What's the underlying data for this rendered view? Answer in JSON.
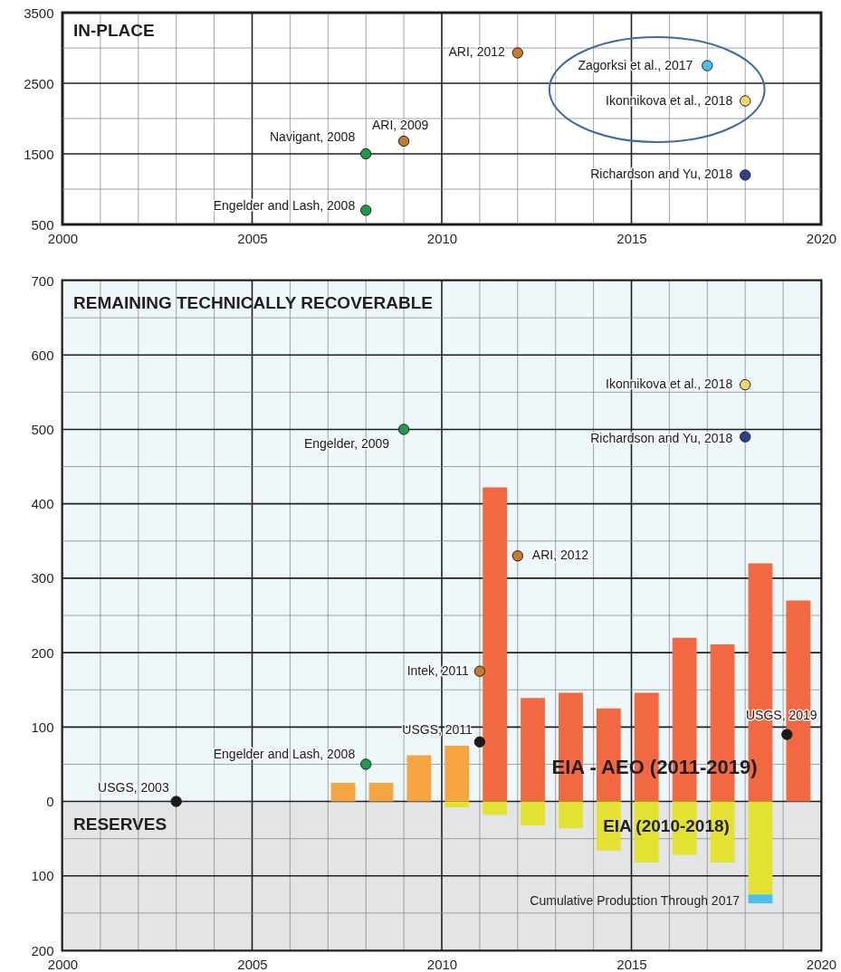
{
  "chart_data": [
    {
      "type": "scatter",
      "title": "IN-PLACE",
      "xlim": [
        2000,
        2020
      ],
      "xticks": [
        2000,
        {
          "value": 2001,
          "label": null
        },
        {
          "value": 2002,
          "label": null
        },
        {
          "value": 2003,
          "label": null
        },
        {
          "value": 2004,
          "label": null
        },
        2005,
        {
          "value": 2006,
          "label": null
        },
        {
          "value": 2007,
          "label": null
        },
        {
          "value": 2008,
          "label": null
        },
        {
          "value": 2009,
          "label": null
        },
        2010,
        {
          "value": 2011,
          "label": null
        },
        {
          "value": 2012,
          "label": null
        },
        {
          "value": 2013,
          "label": null
        },
        {
          "value": 2014,
          "label": null
        },
        2015,
        {
          "value": 2016,
          "label": null
        },
        {
          "value": 2017,
          "label": null
        },
        {
          "value": 2018,
          "label": null
        },
        {
          "value": 2019,
          "label": null
        },
        2020
      ],
      "ylim": [
        500,
        3500
      ],
      "yticks": [
        500,
        {
          "value": 1000,
          "label": null
        },
        1500,
        {
          "value": 2000,
          "label": null
        },
        2500,
        {
          "value": 3000,
          "label": null
        },
        3500
      ],
      "grid": true,
      "marker": "circle",
      "series": [
        {
          "x": [
            2008,
            2008,
            2009,
            2012,
            2017,
            2018,
            2018
          ],
          "values": [
            700,
            1500,
            1680,
            2930,
            2750,
            2250,
            1200
          ],
          "colors": [
            "#1f9a48",
            "#1f9a48",
            "#c27c2c",
            "#c27c2c",
            "#4dbfe9",
            "#f7d56e",
            "#2e3f93"
          ]
        }
      ],
      "annotations": [
        {
          "text": "Engelder and Lash, 2008",
          "x": 2008,
          "y": 700
        },
        {
          "text": "Navigant, 2008",
          "x": 2008,
          "y": 1500
        },
        {
          "text": "ARI, 2009",
          "x": 2009,
          "y": 1680
        },
        {
          "text": "ARI, 2012",
          "x": 2012,
          "y": 2930
        },
        {
          "text": "Zagorksi et al., 2017",
          "x": 2017,
          "y": 2750
        },
        {
          "text": "Ikonnikova et al., 2018",
          "x": 2018,
          "y": 2250
        },
        {
          "text": "Richardson and Yu, 2018",
          "x": 2018,
          "y": 1200
        }
      ]
    },
    {
      "type": "bar",
      "xlim": [
        2000,
        2020
      ],
      "xticks": [
        2000,
        {
          "value": 2001,
          "label": null
        },
        {
          "value": 2002,
          "label": null
        },
        {
          "value": 2003,
          "label": null
        },
        {
          "value": 2004,
          "label": null
        },
        2005,
        {
          "value": 2006,
          "label": null
        },
        {
          "value": 2007,
          "label": null
        },
        {
          "value": 2008,
          "label": null
        },
        {
          "value": 2009,
          "label": null
        },
        2010,
        {
          "value": 2011,
          "label": null
        },
        {
          "value": 2012,
          "label": null
        },
        {
          "value": 2013,
          "label": null
        },
        {
          "value": 2014,
          "label": null
        },
        2015,
        {
          "value": 2016,
          "label": null
        },
        {
          "value": 2017,
          "label": null
        },
        {
          "value": 2018,
          "label": null
        },
        {
          "value": 2019,
          "label": null
        },
        2020
      ],
      "ylim": [
        -200,
        700
      ],
      "yticks": [
        {
          "value": -200,
          "label": "200"
        },
        {
          "value": -150,
          "label": null
        },
        {
          "value": -100,
          "label": "100"
        },
        {
          "value": -50,
          "label": null
        },
        0,
        {
          "value": 50,
          "label": null
        },
        100,
        {
          "value": 150,
          "label": null
        },
        200,
        {
          "value": 250,
          "label": null
        },
        300,
        {
          "value": 350,
          "label": null
        },
        400,
        {
          "value": 450,
          "label": null
        },
        500,
        {
          "value": 550,
          "label": null
        },
        600,
        {
          "value": 650,
          "label": null
        },
        700
      ],
      "grid": true,
      "marker": "circle",
      "bands": [
        {
          "axis": "y",
          "from": 0,
          "to": 700,
          "label": "REMAINING TECHNICALLY RECOVERABLE",
          "color": "#eef7f9"
        },
        {
          "axis": "y",
          "from": -200,
          "to": 0,
          "label": "RESERVES",
          "color": "#e3e4e6"
        }
      ],
      "series": [
        {
          "color": "#f7a540",
          "x": [
            2007.4,
            2008.4,
            2009.4,
            2010.4
          ],
          "values": [
            25,
            25,
            62,
            75
          ]
        },
        {
          "name": "EIA - AEO (2011-2019)",
          "color": "#f26840",
          "x": [
            2011.4,
            2012.4,
            2013.4,
            2014.4,
            2015.4,
            2016.4,
            2017.4,
            2018.4,
            2019.4
          ],
          "values": [
            422,
            139,
            146,
            125,
            146,
            220,
            211,
            320,
            270
          ]
        },
        {
          "name": "EIA (2010-2018)",
          "color": "#e3e232",
          "x": [
            2010.4,
            2011.4,
            2012.4,
            2013.4,
            2014.4,
            2015.4,
            2016.4,
            2017.4,
            2018.4
          ],
          "values": [
            -8,
            -18,
            -32,
            -36,
            -66,
            -82,
            -72,
            -82,
            -125
          ]
        },
        {
          "name": "Cumulative Production Through 2017",
          "color": "#4dbfe9",
          "x": [
            2018.4
          ],
          "base": [
            -125
          ],
          "values": [
            -12
          ]
        },
        {
          "type": "scatter",
          "x": [
            2003,
            2008,
            2009,
            2011,
            2011,
            2012,
            2019.1,
            2018,
            2018
          ],
          "values": [
            0,
            50,
            500,
            80,
            175,
            330,
            90,
            560,
            490
          ],
          "colors": [
            "#1a1a1a",
            "#1f9a48",
            "#1f9a48",
            "#1a1a1a",
            "#c27c2c",
            "#c27c2c",
            "#1a1a1a",
            "#f7d56e",
            "#2e3f93"
          ]
        }
      ],
      "annotations": [
        {
          "text": "USGS, 2003",
          "x": 2003,
          "y": 0
        },
        {
          "text": "Engelder and Lash, 2008",
          "x": 2008,
          "y": 50
        },
        {
          "text": "Engelder, 2009",
          "x": 2009,
          "y": 500
        },
        {
          "text": "USGS, 2011",
          "x": 2011,
          "y": 80
        },
        {
          "text": "Intek, 2011",
          "x": 2011,
          "y": 175
        },
        {
          "text": "ARI, 2012",
          "x": 2012,
          "y": 330
        },
        {
          "text": "USGS, 2019",
          "x": 2019.1,
          "y": 90
        },
        {
          "text": "Ikonnikova et al., 2018",
          "x": 2018,
          "y": 560
        },
        {
          "text": "Richardson and Yu, 2018",
          "x": 2018,
          "y": 490
        }
      ]
    }
  ]
}
